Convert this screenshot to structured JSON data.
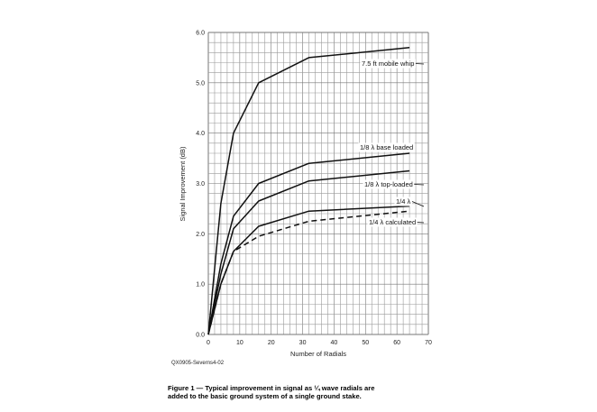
{
  "chart_data": {
    "type": "line",
    "title": "",
    "xlabel": "Number of Radials",
    "ylabel": "Signal Improvement (dB)",
    "xlim": [
      0,
      70
    ],
    "ylim": [
      0,
      6
    ],
    "x_ticks": [
      "0",
      "10",
      "20",
      "30",
      "40",
      "50",
      "60",
      "70"
    ],
    "y_ticks": [
      "0.0",
      "1.0",
      "2.0",
      "3.0",
      "4.0",
      "5.0",
      "6.0"
    ],
    "grid": true,
    "x_grid_step": 2,
    "y_grid_step": 0.2,
    "series": [
      {
        "name": "7.5 ft mobile whip",
        "style": "solid",
        "x": [
          0,
          4,
          8,
          16,
          32,
          64
        ],
        "y": [
          0,
          2.6,
          4.0,
          5.0,
          5.5,
          5.7
        ]
      },
      {
        "name": "1/8 λ base loaded",
        "style": "solid",
        "x": [
          0,
          4,
          8,
          16,
          32,
          64
        ],
        "y": [
          0,
          1.4,
          2.35,
          3.0,
          3.4,
          3.6
        ]
      },
      {
        "name": "1/8 λ top-loaded",
        "style": "solid",
        "x": [
          0,
          4,
          8,
          16,
          32,
          64
        ],
        "y": [
          0,
          1.2,
          2.1,
          2.65,
          3.05,
          3.25
        ]
      },
      {
        "name": "1/4 λ",
        "style": "solid",
        "x": [
          0,
          4,
          8,
          16,
          32,
          64
        ],
        "y": [
          0,
          1.0,
          1.65,
          2.15,
          2.45,
          2.55
        ]
      },
      {
        "name": "1/4 λ calculated",
        "style": "dashed",
        "x": [
          0,
          4,
          8,
          16,
          32,
          64
        ],
        "y": [
          0,
          1.0,
          1.65,
          1.95,
          2.25,
          2.45
        ]
      }
    ]
  },
  "figure_id": "QX0905-Severns4-02",
  "caption": {
    "line1": "Figure 1 — Typical improvement in signal as ¼ wave radials are",
    "line2": "added to the basic ground system of a single ground stake."
  }
}
